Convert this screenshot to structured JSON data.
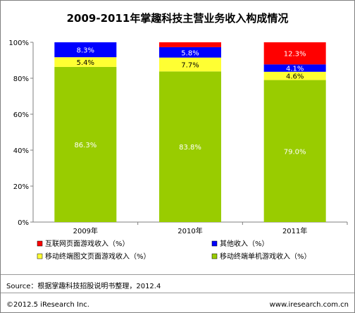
{
  "title": "2009-2011年掌趣科技主营业务收入构成情况",
  "source": "Source：根据掌趣科技招股说明书整理，2012.4",
  "footer_left": "©2012.5 iResearch Inc.",
  "footer_right": "www.iresearch.com.cn",
  "chart_data": {
    "type": "bar",
    "stacked": "percent",
    "categories": [
      "2009年",
      "2010年",
      "2011年"
    ],
    "yticks": [
      "0%",
      "20%",
      "40%",
      "60%",
      "80%",
      "100%"
    ],
    "ylim": [
      0,
      100
    ],
    "series": [
      {
        "name": "移动终端单机游戏收入（%）",
        "color": "#99cc00",
        "values": [
          86.3,
          83.8,
          79.0
        ],
        "labels": [
          "86.3%",
          "83.8%",
          "79.0%"
        ],
        "label_color": "#ffffff"
      },
      {
        "name": "移动终端图文页面游戏收入（%）",
        "color": "#ffff33",
        "values": [
          5.4,
          7.7,
          4.6
        ],
        "labels": [
          "5.4%",
          "7.7%",
          "4.6%"
        ],
        "label_color": "#000000"
      },
      {
        "name": "其他收入（%）",
        "color": "#0000ff",
        "values": [
          8.3,
          5.8,
          4.1
        ],
        "labels": [
          "8.3%",
          "5.8%",
          "4.1%"
        ],
        "label_color": "#ffffff"
      },
      {
        "name": "互联网页面游戏收入（%）",
        "color": "#ff0000",
        "values": [
          0.0,
          2.7,
          12.3
        ],
        "labels": [
          "",
          "",
          "12.3%"
        ],
        "label_color": "#ffffff"
      }
    ],
    "legend": [
      "互联网页面游戏收入（%）",
      "其他收入（%）",
      "移动终端图文页面游戏收入（%）",
      "移动终端单机游戏收入（%）"
    ],
    "legend_position": "bottom",
    "grid": false
  }
}
